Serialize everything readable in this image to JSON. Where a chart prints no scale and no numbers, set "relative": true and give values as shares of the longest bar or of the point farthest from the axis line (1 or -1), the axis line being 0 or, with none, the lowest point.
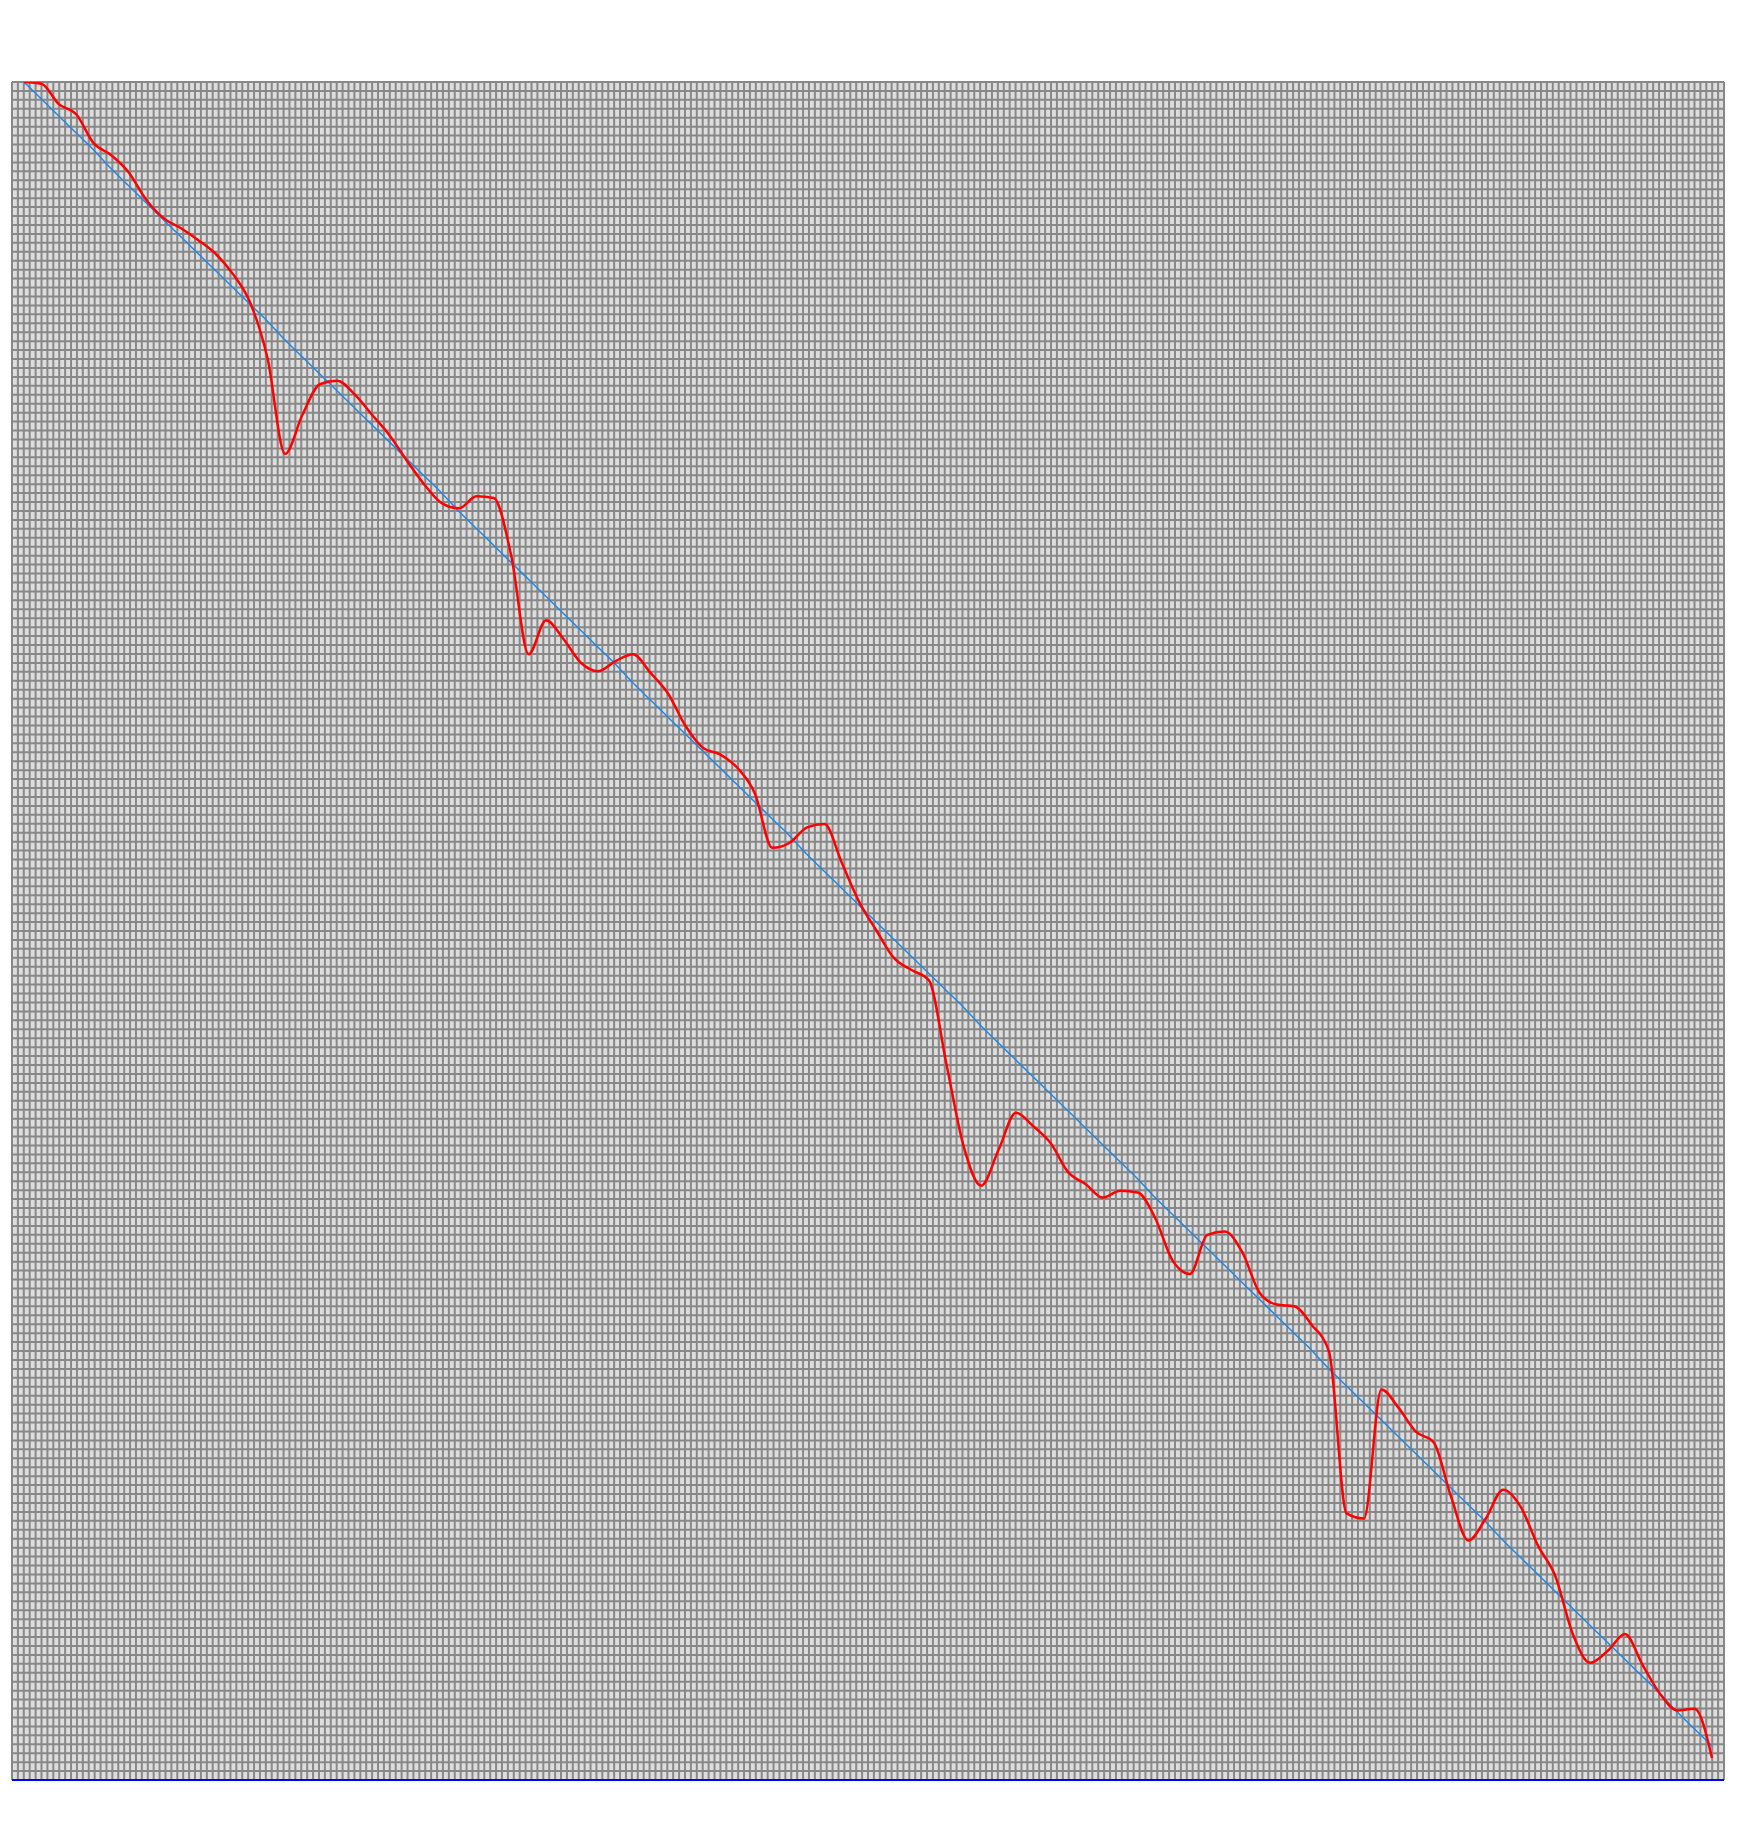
{
  "chart_data": {
    "type": "line",
    "relative": true,
    "grid": true,
    "tick_labels": false,
    "marker": "none",
    "categories": [
      null,
      null,
      null,
      null,
      null,
      null,
      null,
      null,
      null,
      null,
      null,
      null,
      null,
      null,
      null,
      null,
      null,
      null,
      null,
      null,
      null,
      null,
      null,
      null,
      null,
      null,
      null,
      null,
      null,
      null,
      null,
      null,
      null,
      null,
      null,
      null,
      null,
      null,
      null,
      null,
      null,
      null,
      null,
      null,
      null,
      null,
      null,
      null,
      null,
      null,
      null,
      null,
      null,
      null,
      null,
      null,
      null,
      null,
      null,
      null,
      null,
      null,
      null,
      null,
      null,
      null,
      null,
      null,
      null,
      null,
      null,
      null,
      null,
      null,
      null,
      null,
      null,
      null,
      null,
      null,
      null,
      null,
      null,
      null,
      null,
      null,
      null,
      null,
      null,
      null,
      null,
      null,
      null,
      null,
      null,
      null,
      null,
      null
    ],
    "series": [
      {
        "color": "#1e88e5",
        "values": [
          1,
          0.99,
          0.98,
          0.97,
          0.96,
          0.949,
          0.939,
          0.929,
          0.919,
          0.909,
          0.899,
          0.889,
          0.879,
          0.869,
          0.859,
          0.848,
          0.838,
          0.828,
          0.818,
          0.808,
          0.798,
          0.788,
          0.778,
          0.768,
          0.758,
          0.747,
          0.737,
          0.727,
          0.717,
          0.707,
          0.697,
          0.687,
          0.677,
          0.667,
          0.657,
          0.646,
          0.636,
          0.626,
          0.616,
          0.606,
          0.596,
          0.586,
          0.576,
          0.566,
          0.556,
          0.545,
          0.535,
          0.525,
          0.515,
          0.505,
          0.495,
          0.485,
          0.475,
          0.465,
          0.455,
          0.444,
          0.434,
          0.424,
          0.414,
          0.404,
          0.394,
          0.384,
          0.374,
          0.364,
          0.354,
          0.343,
          0.333,
          0.323,
          0.313,
          0.303,
          0.293,
          0.283,
          0.273,
          0.263,
          0.253,
          0.242,
          0.232,
          0.222,
          0.212,
          0.202,
          0.192,
          0.182,
          0.172,
          0.162,
          0.152,
          0.141,
          0.131,
          0.121,
          0.111,
          0.101,
          0.091,
          0.081,
          0.071,
          0.061,
          0.051,
          0.04,
          0.03,
          0.02
        ]
      },
      {
        "color": "#ff0000",
        "values": [
          1,
          0.999,
          0.987,
          0.981,
          0.964,
          0.957,
          0.947,
          0.931,
          0.92,
          0.914,
          0.907,
          0.899,
          0.887,
          0.87,
          0.837,
          0.781,
          0.804,
          0.822,
          0.824,
          0.816,
          0.804,
          0.792,
          0.777,
          0.763,
          0.752,
          0.749,
          0.756,
          0.755,
          0.721,
          0.663,
          0.683,
          0.672,
          0.658,
          0.653,
          0.659,
          0.663,
          0.652,
          0.64,
          0.621,
          0.608,
          0.604,
          0.596,
          0.581,
          0.549,
          0.552,
          0.561,
          0.563,
          0.54,
          0.517,
          0.5,
          0.484,
          0.477,
          0.471,
          0.422,
          0.373,
          0.35,
          0.371,
          0.393,
          0.385,
          0.375,
          0.358,
          0.351,
          0.343,
          0.347,
          0.346,
          0.331,
          0.306,
          0.298,
          0.321,
          0.323,
          0.311,
          0.287,
          0.28,
          0.279,
          0.268,
          0.252,
          0.157,
          0.154,
          0.23,
          0.219,
          0.205,
          0.199,
          0.167,
          0.141,
          0.154,
          0.171,
          0.161,
          0.138,
          0.12,
          0.086,
          0.069,
          0.076,
          0.086,
          0.068,
          0.051,
          0.041,
          0.042,
          0.013
        ]
      }
    ]
  }
}
